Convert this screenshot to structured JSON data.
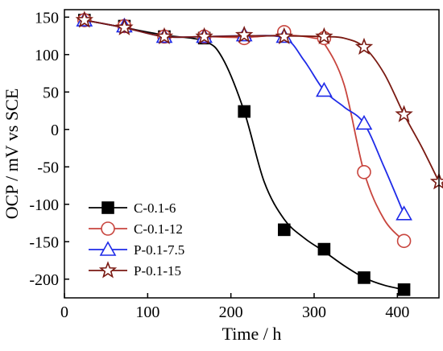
{
  "chart_data": {
    "type": "line",
    "title": "",
    "xlabel": "Time / h",
    "ylabel": "OCP / mV vs SCE",
    "xlim": [
      0,
      450
    ],
    "ylim": [
      -225,
      160
    ],
    "xticks": [
      0,
      100,
      200,
      300,
      400
    ],
    "yticks": [
      150,
      100,
      50,
      0,
      -50,
      -100,
      -150,
      -200
    ],
    "xtick_labels": [
      "0",
      "100",
      "200",
      "300",
      "400"
    ],
    "ytick_labels": [
      "150",
      "100",
      "50",
      "0",
      "-50",
      "-100",
      "-150",
      "-200"
    ],
    "grid": false,
    "legend_position": "bottom-left",
    "series": [
      {
        "name": "C-0.1-6",
        "marker": "square",
        "color": "#000000",
        "fill": "#000000",
        "x": [
          24,
          72,
          120,
          168,
          216,
          264,
          312,
          360,
          408
        ],
        "y": [
          146,
          138,
          124,
          122,
          24,
          -134,
          -160,
          -198,
          -214
        ],
        "curve_x": [
          24,
          72,
          120,
          168,
          190,
          216,
          240,
          264,
          288,
          312,
          336,
          360,
          384,
          408
        ],
        "curve_y": [
          146,
          136,
          126,
          118,
          95,
          24,
          -70,
          -120,
          -145,
          -163,
          -182,
          -198,
          -208,
          -214
        ]
      },
      {
        "name": "C-0.1-12",
        "marker": "circle",
        "color": "#c8453e",
        "fill": "none",
        "x": [
          24,
          72,
          120,
          168,
          216,
          264,
          312,
          360,
          408
        ],
        "y": [
          146,
          138,
          124,
          124,
          122,
          130,
          122,
          -57,
          -149
        ],
        "curve_x": [
          24,
          72,
          120,
          168,
          216,
          264,
          300,
          312,
          336,
          360,
          384,
          408
        ],
        "curve_y": [
          146,
          136,
          124,
          124,
          123,
          126,
          122,
          115,
          60,
          -57,
          -120,
          -149
        ]
      },
      {
        "name": "P-0.1-7.5",
        "marker": "triangle",
        "color": "#1f2be8",
        "fill": "none",
        "x": [
          24,
          72,
          120,
          168,
          216,
          264,
          312,
          360,
          408
        ],
        "y": [
          146,
          138,
          124,
          124,
          126,
          124,
          52,
          8,
          -113
        ],
        "curve_x": [
          24,
          72,
          120,
          168,
          216,
          264,
          288,
          312,
          336,
          360,
          384,
          408
        ],
        "curve_y": [
          146,
          136,
          124,
          124,
          125,
          122,
          92,
          52,
          30,
          8,
          -50,
          -113
        ]
      },
      {
        "name": "P-0.1-15",
        "marker": "star",
        "color": "#7a1a12",
        "fill": "none",
        "x": [
          24,
          72,
          120,
          168,
          216,
          264,
          312,
          360,
          408,
          450
        ],
        "y": [
          146,
          136,
          124,
          124,
          126,
          124,
          124,
          110,
          20,
          -70
        ],
        "curve_x": [
          24,
          72,
          120,
          168,
          216,
          264,
          312,
          336,
          360,
          384,
          408,
          430,
          450
        ],
        "curve_y": [
          146,
          136,
          124,
          124,
          125,
          125,
          124,
          122,
          110,
          75,
          20,
          -25,
          -70
        ]
      }
    ]
  }
}
